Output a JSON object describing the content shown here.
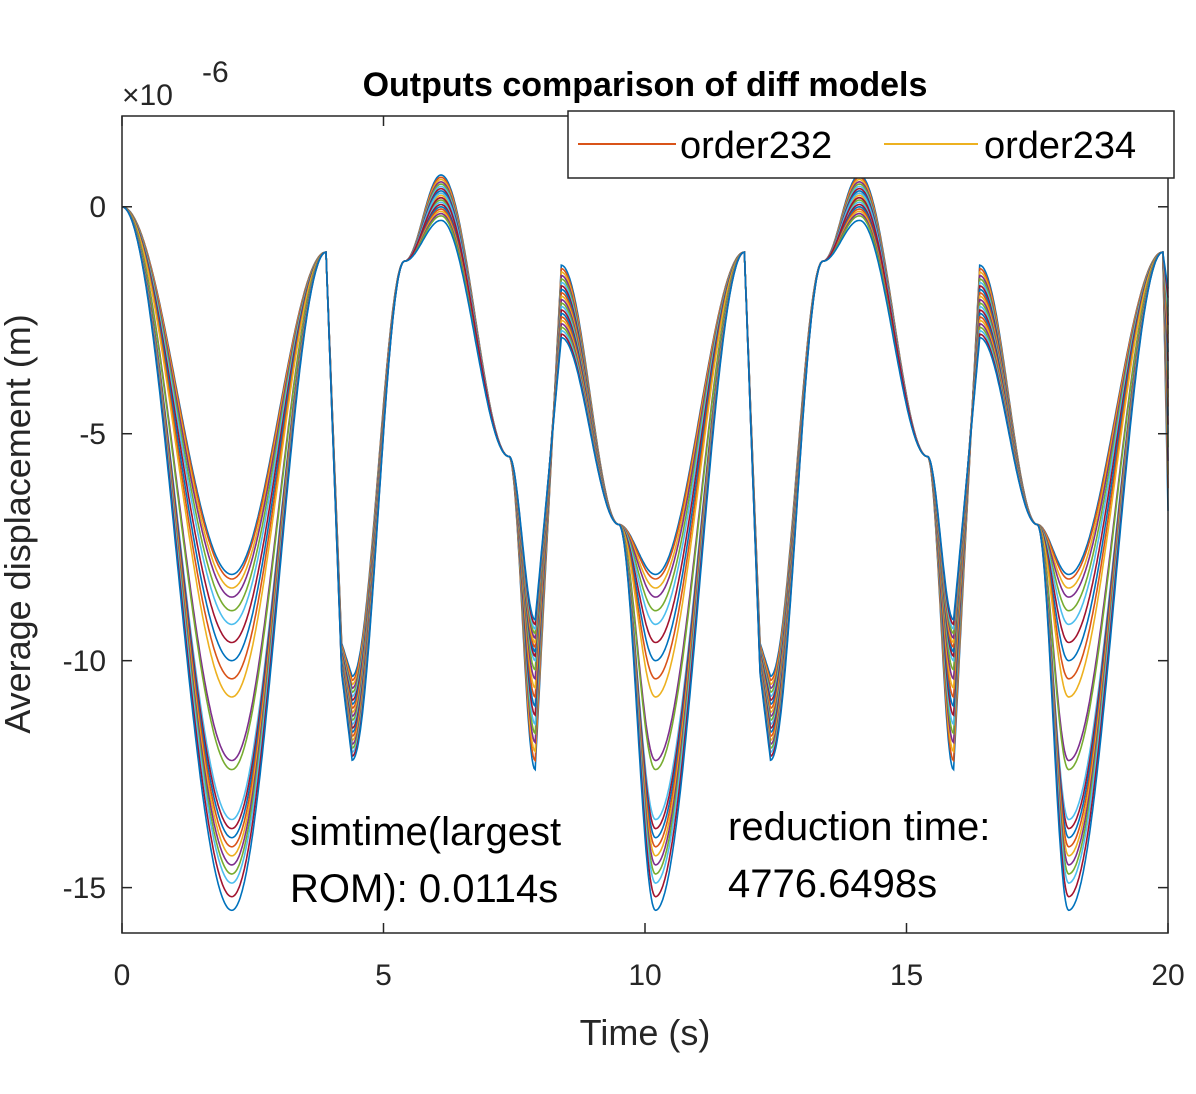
{
  "chart_data": {
    "type": "line",
    "title": "Outputs comparison of diff models",
    "xlabel": "Time (s)",
    "ylabel": "Average displacement (m)",
    "xlim": [
      0,
      20
    ],
    "ylim": [
      -16,
      2
    ],
    "y_exponent_label": "×10",
    "y_exponent_power": "-6",
    "x_ticks": [
      0,
      5,
      10,
      15,
      20
    ],
    "x_tick_labels": [
      "0",
      "5",
      "10",
      "15",
      "20"
    ],
    "y_ticks": [
      0,
      -5,
      -10,
      -15
    ],
    "y_tick_labels": [
      "0",
      "-5",
      "-10",
      "-15"
    ],
    "legend": {
      "placement": "top-right",
      "entries": [
        {
          "name": "order232",
          "color": "#D95319"
        },
        {
          "name": "order234",
          "color": "#EDB120"
        }
      ]
    },
    "annotations": [
      {
        "lines": [
          "simtime(largest",
          "ROM): 0.0114s"
        ],
        "x": 3.2,
        "y": -13.6
      },
      {
        "lines": [
          "reduction time:",
          "4776.6498s"
        ],
        "x": 11.5,
        "y": -13.5
      }
    ],
    "series_colors": [
      "#0072BD",
      "#D95319",
      "#EDB120",
      "#7E2F8E",
      "#77AC30",
      "#4DBEEE",
      "#A2142F"
    ],
    "series_params": [
      {
        "mid": -8.1,
        "mul": 0.52,
        "pk": 0.7,
        "dip": -12.4,
        "end": -6.7
      },
      {
        "mid": -8.2,
        "mul": 0.56,
        "pk": 0.65,
        "dip": -12.2,
        "end": -6.2
      },
      {
        "mid": -8.4,
        "mul": 0.6,
        "pk": 0.6,
        "dip": -12.0,
        "end": -5.9
      },
      {
        "mid": -8.6,
        "mul": 0.64,
        "pk": 0.55,
        "dip": -11.8,
        "end": -5.6
      },
      {
        "mid": -8.9,
        "mul": 0.68,
        "pk": 0.5,
        "dip": -11.6,
        "end": -5.3
      },
      {
        "mid": -9.2,
        "mul": 0.72,
        "pk": 0.45,
        "dip": -11.4,
        "end": -5.0
      },
      {
        "mid": -9.6,
        "mul": 0.76,
        "pk": 0.4,
        "dip": -11.2,
        "end": -4.8
      },
      {
        "mid": -10.0,
        "mul": 0.8,
        "pk": 0.35,
        "dip": -11.0,
        "end": -4.6
      },
      {
        "mid": -10.4,
        "mul": 0.84,
        "pk": 0.3,
        "dip": -10.8,
        "end": -4.4
      },
      {
        "mid": -10.8,
        "mul": 0.88,
        "pk": 0.25,
        "dip": -10.6,
        "end": -4.2
      },
      {
        "mid": -12.2,
        "mul": 0.92,
        "pk": 0.2,
        "dip": -10.4,
        "end": -4.0
      },
      {
        "mid": -12.4,
        "mul": 0.96,
        "pk": 0.15,
        "dip": -10.2,
        "end": -3.8
      },
      {
        "mid": -13.5,
        "mul": 1.0,
        "pk": 0.1,
        "dip": -10.0,
        "end": -3.6
      },
      {
        "mid": -13.7,
        "mul": 1.04,
        "pk": 0.05,
        "dip": -9.9,
        "end": -3.4
      },
      {
        "mid": -13.9,
        "mul": 1.08,
        "pk": 0.0,
        "dip": -9.8,
        "end": -3.2
      },
      {
        "mid": -14.1,
        "mul": 1.12,
        "pk": -0.05,
        "dip": -9.7,
        "end": -3.0
      },
      {
        "mid": -14.3,
        "mul": 1.16,
        "pk": -0.1,
        "dip": -9.6,
        "end": -2.8
      },
      {
        "mid": -14.5,
        "mul": 1.2,
        "pk": -0.15,
        "dip": -9.5,
        "end": -2.6
      },
      {
        "mid": -14.7,
        "mul": 1.24,
        "pk": -0.2,
        "dip": -9.4,
        "end": -2.4
      },
      {
        "mid": -14.9,
        "mul": 1.28,
        "pk": 0.3,
        "dip": -9.3,
        "end": -2.2
      },
      {
        "mid": -15.2,
        "mul": 1.32,
        "pk": 0.2,
        "dip": -9.2,
        "end": -2.0
      },
      {
        "mid": -15.5,
        "mul": 1.36,
        "pk": -0.3,
        "dip": -9.1,
        "end": -1.8
      }
    ]
  }
}
